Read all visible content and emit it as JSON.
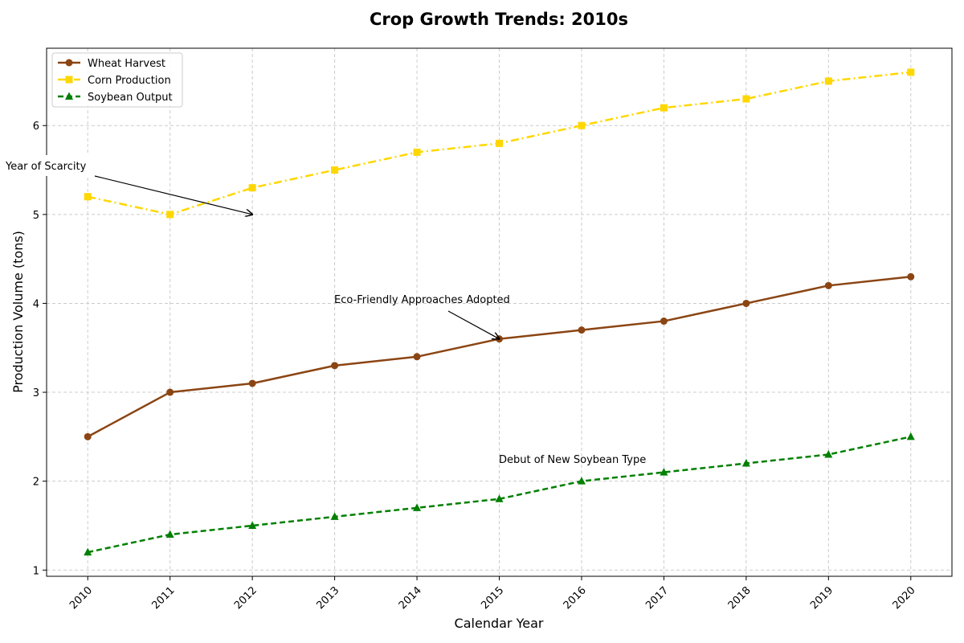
{
  "chart_data": {
    "type": "line",
    "title": "Crop Growth Trends: 2010s",
    "xlabel": "Calendar Year",
    "ylabel": "Production Volume (tons)",
    "x": [
      "2010",
      "2011",
      "2012",
      "2013",
      "2014",
      "2015",
      "2016",
      "2017",
      "2018",
      "2019",
      "2020"
    ],
    "xlim": [
      2009.5,
      2020.5
    ],
    "ylim": [
      0.93,
      6.87
    ],
    "yticks": [
      "1",
      "2",
      "3",
      "4",
      "5",
      "6"
    ],
    "grid": true,
    "legend_position": "top-left",
    "series": [
      {
        "name": "Wheat Harvest",
        "color": "#8B4513",
        "marker": "circle",
        "linestyle": "solid",
        "values": [
          2.5,
          3.0,
          3.1,
          3.3,
          3.4,
          3.6,
          3.7,
          3.8,
          4.0,
          4.2,
          4.3
        ]
      },
      {
        "name": "Corn Production",
        "color": "#FFD700",
        "marker": "square",
        "linestyle": "dashdot",
        "values": [
          5.2,
          5.0,
          5.3,
          5.5,
          5.7,
          5.8,
          6.0,
          6.2,
          6.3,
          6.5,
          6.6
        ]
      },
      {
        "name": "Soybean Output",
        "color": "#008000",
        "marker": "triangle",
        "linestyle": "dashed",
        "values": [
          1.2,
          1.4,
          1.5,
          1.6,
          1.7,
          1.8,
          2.0,
          2.1,
          2.2,
          2.3,
          2.5
        ]
      }
    ],
    "annotations": [
      {
        "text": "Year of Scarcity",
        "x": 2012,
        "y": 5.0,
        "arrow": true
      },
      {
        "text": "Eco-Friendly Approaches Adopted",
        "x": 2015,
        "y": 3.6,
        "arrow": true
      },
      {
        "text": "Debut of New Soybean Type",
        "x": 2017,
        "y": 2.1,
        "arrow": false
      }
    ]
  }
}
